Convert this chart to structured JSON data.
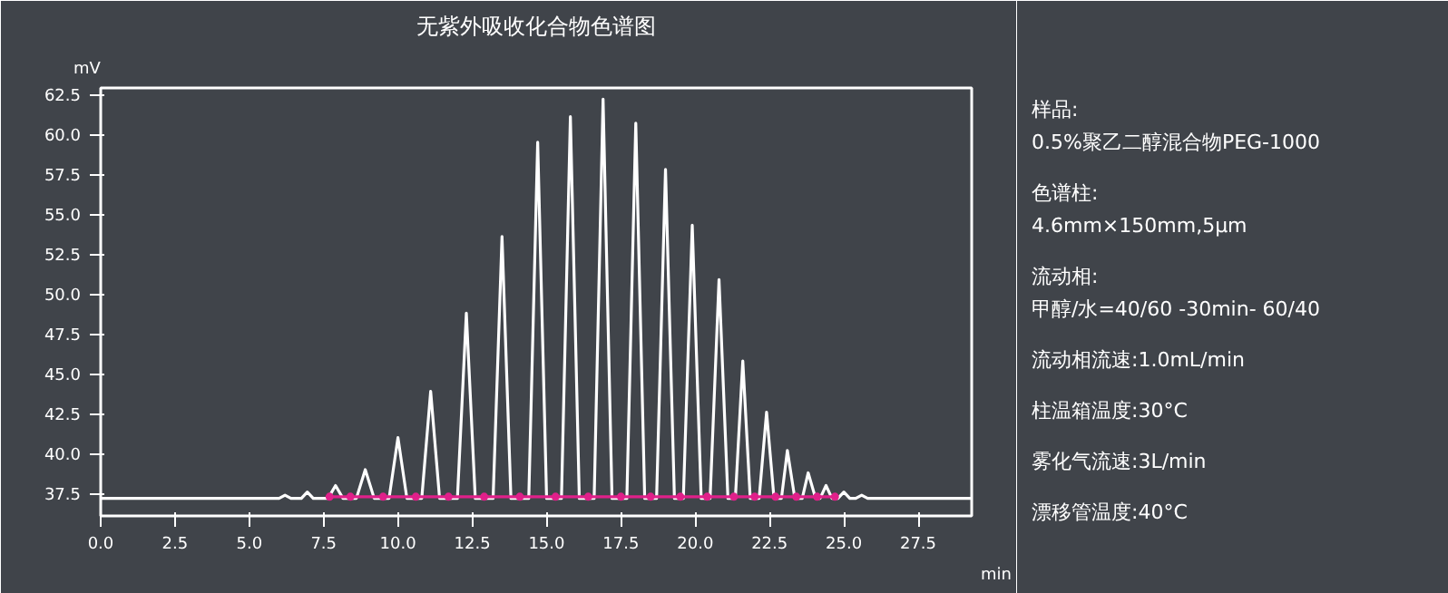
{
  "chart_data": [
    {
      "type": "line",
      "title": "无紫外吸收化合物色谱图",
      "xlabel": "min",
      "ylabel": "mV",
      "xlim": [
        0,
        29.3
      ],
      "ylim": [
        36.1,
        62.9
      ],
      "xticks": [
        {
          "value": 0,
          "label": "0.0"
        },
        {
          "value": 2.5,
          "label": "2.5"
        },
        {
          "value": 5,
          "label": "5.0"
        },
        {
          "value": 7.5,
          "label": "7.5"
        },
        {
          "value": 10,
          "label": "10.0"
        },
        {
          "value": 12.5,
          "label": "12.5"
        },
        {
          "value": 15,
          "label": "15.0"
        },
        {
          "value": 17.5,
          "label": "17.5"
        },
        {
          "value": 20,
          "label": "20.0"
        },
        {
          "value": 22.5,
          "label": "22.5"
        },
        {
          "value": 25,
          "label": "25.0"
        },
        {
          "value": 27.5,
          "label": "27.5"
        }
      ],
      "yticks": [
        37.5,
        {
          "value": 40,
          "label": "40.0"
        },
        42.5,
        {
          "value": 45,
          "label": "45.0"
        },
        47.5,
        {
          "value": 50,
          "label": "50.0"
        },
        52.5,
        {
          "value": 55,
          "label": "55.0"
        },
        57.5,
        {
          "value": 60,
          "label": "60.0"
        },
        62.5
      ],
      "grid": false,
      "line_style": "solid",
      "series": [
        {
          "color": "#ffffff",
          "x": [
            0,
            6.0,
            6.2,
            6.4,
            6.75,
            6.95,
            7.15,
            7.65,
            7.9,
            8.15,
            8.6,
            8.9,
            9.2,
            9.7,
            10.0,
            10.3,
            10.8,
            11.1,
            11.4,
            12.0,
            12.3,
            12.6,
            13.2,
            13.5,
            13.8,
            14.4,
            14.7,
            15.0,
            15.5,
            15.8,
            16.1,
            16.6,
            16.9,
            17.2,
            17.7,
            18.0,
            18.3,
            18.7,
            19.0,
            19.3,
            19.6,
            19.9,
            20.2,
            20.5,
            20.8,
            21.1,
            21.35,
            21.6,
            21.85,
            22.15,
            22.4,
            22.65,
            22.9,
            23.1,
            23.35,
            23.6,
            23.8,
            24.05,
            24.2,
            24.4,
            24.6,
            24.8,
            25.0,
            25.2,
            25.4,
            25.6,
            25.8,
            29.3
          ],
          "values": [
            37.2,
            37.2,
            37.4,
            37.2,
            37.2,
            37.6,
            37.2,
            37.2,
            38.0,
            37.2,
            37.2,
            39.0,
            37.2,
            37.2,
            41.0,
            37.2,
            37.2,
            43.9,
            37.2,
            37.2,
            48.8,
            37.2,
            37.2,
            53.6,
            37.2,
            37.2,
            59.5,
            37.2,
            37.2,
            61.1,
            37.2,
            37.2,
            62.2,
            37.2,
            37.2,
            60.7,
            37.2,
            37.2,
            57.8,
            37.2,
            37.2,
            54.3,
            37.2,
            37.2,
            50.9,
            37.2,
            37.2,
            45.8,
            37.2,
            37.2,
            42.6,
            37.2,
            37.2,
            40.2,
            37.2,
            37.2,
            38.8,
            37.2,
            37.2,
            38.0,
            37.2,
            37.2,
            37.6,
            37.2,
            37.2,
            37.4,
            37.2,
            37.2
          ]
        },
        {
          "color": "#e0208a",
          "marker": "circle",
          "x": [
            7.7,
            8.4,
            9.5,
            10.6,
            11.7,
            12.9,
            14.1,
            15.3,
            16.4,
            17.5,
            18.5,
            19.5,
            20.4,
            21.3,
            22.0,
            22.7,
            23.4,
            24.1,
            24.7
          ],
          "values": [
            37.3,
            37.3,
            37.3,
            37.3,
            37.3,
            37.3,
            37.3,
            37.3,
            37.3,
            37.3,
            37.3,
            37.3,
            37.3,
            37.3,
            37.3,
            37.3,
            37.3,
            37.3,
            37.3
          ]
        }
      ]
    },
    {
      "type": "other",
      "annotations": [
        "样品:\n0.5%聚乙二醇混合物PEG-1000",
        "色谱柱:\n4.6mm×150mm,5μm",
        "流动相:\n甲醇/水=40/60 -30min- 60/40",
        "流动相流速:1.0mL/min",
        "柱温箱温度:30°C",
        "雾化气流速:3L/min",
        "漂移管温度:40°C"
      ]
    }
  ]
}
